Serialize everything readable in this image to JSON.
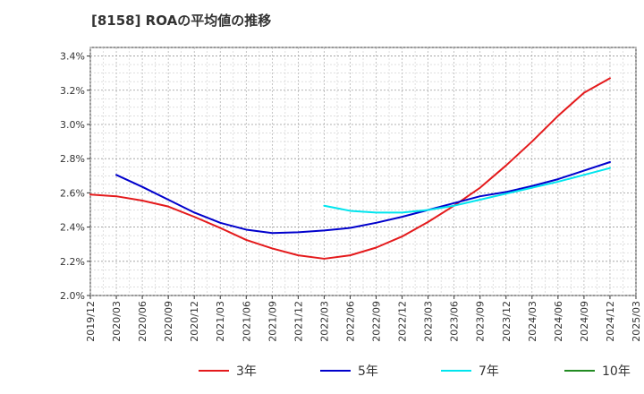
{
  "chart_data": {
    "type": "line",
    "title": "[8158]  ROAの平均値の推移",
    "xlabel": "",
    "ylabel": "",
    "x": [
      "2019/12",
      "2020/03",
      "2020/06",
      "2020/09",
      "2020/12",
      "2021/03",
      "2021/06",
      "2021/09",
      "2021/12",
      "2022/03",
      "2022/06",
      "2022/09",
      "2022/12",
      "2023/03",
      "2023/06",
      "2023/09",
      "2023/12",
      "2024/03",
      "2024/06",
      "2024/09",
      "2024/12",
      "2025/03"
    ],
    "ylim": [
      2.0,
      3.45
    ],
    "y_ticks": [
      2.0,
      2.2,
      2.4,
      2.6,
      2.8,
      3.0,
      3.2,
      3.4
    ],
    "y_tick_labels": [
      "2.0%",
      "2.2%",
      "2.4%",
      "2.6%",
      "2.8%",
      "3.0%",
      "3.2%",
      "3.4%"
    ],
    "grid": true,
    "legend_position": "bottom",
    "series": [
      {
        "name": "3年",
        "color": "#e41a1c",
        "values": [
          2.59,
          2.58,
          2.555,
          2.52,
          2.46,
          2.395,
          2.325,
          2.275,
          2.235,
          2.215,
          2.235,
          2.28,
          2.345,
          2.43,
          2.525,
          2.63,
          2.76,
          2.9,
          3.05,
          3.185,
          3.27,
          null
        ]
      },
      {
        "name": "5年",
        "color": "#0000cc",
        "values": [
          null,
          2.705,
          2.635,
          2.56,
          2.485,
          2.425,
          2.385,
          2.365,
          2.37,
          2.38,
          2.395,
          2.425,
          2.46,
          2.5,
          2.54,
          2.58,
          2.605,
          2.64,
          2.68,
          2.73,
          2.78,
          null
        ]
      },
      {
        "name": "7年",
        "color": "#00e5ee",
        "values": [
          null,
          null,
          null,
          null,
          null,
          null,
          null,
          null,
          null,
          2.525,
          2.495,
          2.485,
          2.485,
          2.5,
          2.525,
          2.56,
          2.595,
          2.63,
          2.665,
          2.705,
          2.745,
          null
        ]
      },
      {
        "name": "10年",
        "color": "#228b22",
        "values": [
          null,
          null,
          null,
          null,
          null,
          null,
          null,
          null,
          null,
          null,
          null,
          null,
          null,
          null,
          null,
          null,
          null,
          null,
          null,
          null,
          null,
          null
        ]
      }
    ]
  }
}
